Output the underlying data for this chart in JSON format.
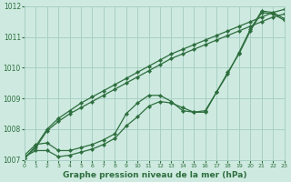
{
  "background_color": "#ceeae0",
  "grid_color": "#a8cfc4",
  "line_color": "#2d6e3e",
  "marker_color": "#2d6e3e",
  "xlabel": "Graphe pression niveau de la mer (hPa)",
  "ylim": [
    1007,
    1012
  ],
  "xlim": [
    0,
    23
  ],
  "yticks": [
    1007,
    1008,
    1009,
    1010,
    1011,
    1012
  ],
  "xticks": [
    0,
    1,
    2,
    3,
    4,
    5,
    6,
    7,
    8,
    9,
    10,
    11,
    12,
    13,
    14,
    15,
    16,
    17,
    18,
    19,
    20,
    21,
    22,
    23
  ],
  "series": [
    [
      1007.15,
      1007.5,
      1007.55,
      1007.3,
      1007.3,
      1007.4,
      1007.5,
      1007.65,
      1007.85,
      1008.5,
      1008.85,
      1009.1,
      1009.1,
      1008.9,
      1008.6,
      1008.55,
      1008.6,
      1009.2,
      1009.8,
      1010.5,
      1011.25,
      1011.85,
      1011.8,
      1011.6
    ],
    [
      1007.1,
      1007.3,
      1007.3,
      1007.1,
      1007.15,
      1007.25,
      1007.35,
      1007.5,
      1007.7,
      1008.1,
      1008.4,
      1008.75,
      1008.9,
      1008.85,
      1008.7,
      1008.55,
      1008.55,
      1009.2,
      1009.85,
      1010.45,
      1011.2,
      1011.8,
      1011.75,
      1011.55
    ],
    [
      1007.05,
      1007.45,
      1008.0,
      1008.35,
      1008.6,
      1008.85,
      1009.05,
      1009.25,
      1009.45,
      1009.65,
      1009.85,
      1010.05,
      1010.25,
      1010.45,
      1010.6,
      1010.75,
      1010.9,
      1011.05,
      1011.2,
      1011.35,
      1011.5,
      1011.65,
      1011.8,
      1011.9
    ],
    [
      1007.05,
      1007.4,
      1007.95,
      1008.25,
      1008.5,
      1008.7,
      1008.9,
      1009.1,
      1009.3,
      1009.5,
      1009.7,
      1009.9,
      1010.1,
      1010.3,
      1010.45,
      1010.6,
      1010.75,
      1010.9,
      1011.05,
      1011.2,
      1011.35,
      1011.5,
      1011.65,
      1011.75
    ]
  ]
}
